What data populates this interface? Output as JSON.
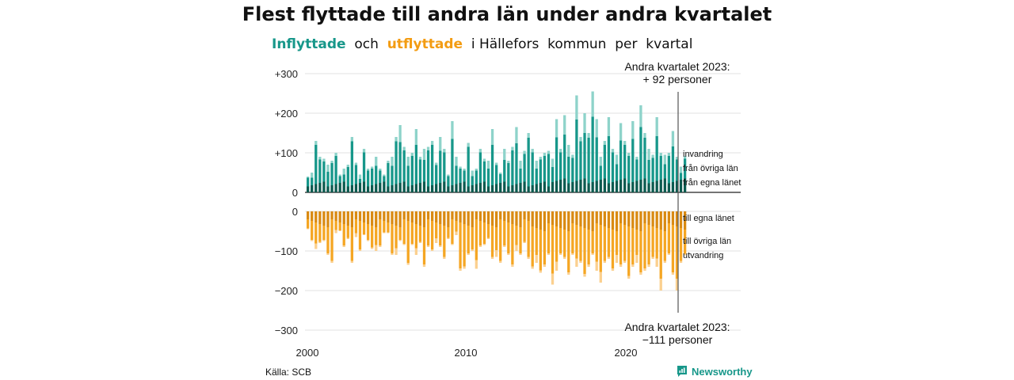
{
  "title": "Flest flyttade till andra län under andra kvartalet",
  "subtitle": {
    "in_word": "Inflyttade",
    "and_word": "och",
    "out_word": "utflyttade",
    "rest": "i Hällefors  kommun  per  kvartal"
  },
  "source": "Källa: SCB",
  "brand": "Newsworthy",
  "colors": {
    "in_own": "#0b5a4f",
    "in_other": "#17978a",
    "in_abroad": "#8ed3ca",
    "out_own": "#d98a12",
    "out_other": "#f5a623",
    "out_abroad": "#fbd08f",
    "grid": "#e2e2e2",
    "axis": "#222222"
  },
  "annotations": {
    "top": [
      "Andra kvartalet 2023:",
      "+ 92 personer"
    ],
    "bottom": [
      "Andra kvartalet 2023:",
      "−111 personer"
    ]
  },
  "chart_data": {
    "type": "bar",
    "note": "Stacked quarterly bars; inflow above, outflow below the baseline. Values estimated from gridlines.",
    "x_start": "2000 Q1",
    "x_end": "2023 Q2",
    "x_ticks": [
      "2000",
      "2010",
      "2020"
    ],
    "in_ylim": [
      0,
      300
    ],
    "out_ylim": [
      -300,
      0
    ],
    "y_ticks_in": [
      "+300",
      "+200",
      "+100",
      "0"
    ],
    "y_ticks_out": [
      "0",
      "−100",
      "−200",
      "−300"
    ],
    "inflow_total": [
      40,
      50,
      130,
      90,
      85,
      70,
      80,
      100,
      45,
      60,
      70,
      140,
      75,
      45,
      110,
      60,
      65,
      90,
      60,
      45,
      80,
      90,
      140,
      170,
      115,
      90,
      100,
      160,
      90,
      110,
      115,
      130,
      75,
      140,
      110,
      45,
      180,
      90,
      65,
      60,
      125,
      55,
      60,
      110,
      85,
      80,
      160,
      75,
      50,
      110,
      80,
      115,
      165,
      80,
      105,
      150,
      110,
      80,
      90,
      100,
      105,
      85,
      185,
      110,
      195,
      120,
      95,
      245,
      140,
      200,
      150,
      255,
      185,
      90,
      130,
      190,
      110,
      95,
      175,
      130,
      100,
      180,
      90,
      220,
      150,
      110,
      95,
      190,
      100,
      95,
      100,
      155,
      90,
      65,
      92
    ],
    "inflow_legend": [
      "invandring",
      "från övriga län",
      "från egna länet"
    ],
    "outflow_total": [
      -45,
      -75,
      -95,
      -80,
      -75,
      -110,
      -130,
      -55,
      -50,
      -90,
      -70,
      -130,
      -65,
      -100,
      -60,
      -75,
      -95,
      -100,
      -90,
      -55,
      -55,
      -110,
      -110,
      -75,
      -85,
      -135,
      -85,
      -110,
      -80,
      -140,
      -90,
      -100,
      -80,
      -90,
      -120,
      -70,
      -85,
      -60,
      -150,
      -145,
      -110,
      -100,
      -145,
      -90,
      -85,
      -70,
      -120,
      -115,
      -130,
      -90,
      -110,
      -140,
      -100,
      -110,
      -80,
      -120,
      -145,
      -130,
      -155,
      -140,
      -110,
      -185,
      -150,
      -110,
      -120,
      -160,
      -110,
      -140,
      -130,
      -165,
      -140,
      -110,
      -150,
      -180,
      -130,
      -120,
      -150,
      -130,
      -140,
      -130,
      -170,
      -140,
      -130,
      -160,
      -150,
      -140,
      -120,
      -140,
      -200,
      -130,
      -110,
      -160,
      -200,
      -130,
      -111
    ],
    "outflow_legend": [
      "till egna länet",
      "till övriga län",
      "utvandring"
    ]
  }
}
